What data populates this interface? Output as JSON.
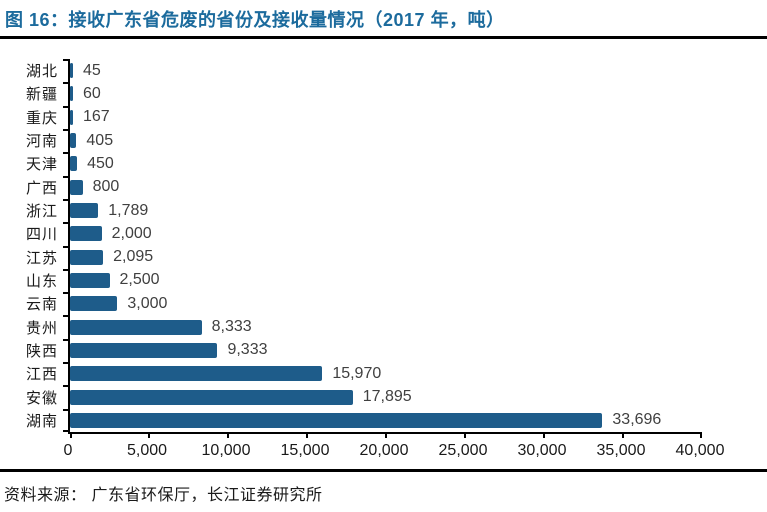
{
  "figure": {
    "title": "图 16：接收广东省危废的省份及接收量情况（2017 年，吨）",
    "source": "资料来源： 广东省环保厅，长江证券研究所",
    "title_color": "#1C6B9D"
  },
  "chart_data": {
    "type": "bar",
    "orientation": "horizontal",
    "title": "接收广东省危废的省份及接收量情况（2017 年，吨）",
    "categories": [
      "湖北",
      "新疆",
      "重庆",
      "河南",
      "天津",
      "广西",
      "浙江",
      "四川",
      "江苏",
      "山东",
      "云南",
      "贵州",
      "陕西",
      "江西",
      "安徽",
      "湖南"
    ],
    "values": [
      45,
      60,
      167,
      405,
      450,
      800,
      1789,
      2000,
      2095,
      2500,
      3000,
      8333,
      9333,
      15970,
      17895,
      33696
    ],
    "value_labels": [
      "45",
      "60",
      "167",
      "405",
      "450",
      "800",
      "1,789",
      "2,000",
      "2,095",
      "2,500",
      "3,000",
      "8,333",
      "9,333",
      "15,970",
      "17,895",
      "33,696"
    ],
    "xlabel": "",
    "ylabel": "",
    "xlim": [
      0,
      40000
    ],
    "x_ticks": [
      0,
      5000,
      10000,
      15000,
      20000,
      25000,
      30000,
      35000,
      40000
    ],
    "x_tick_labels": [
      "0",
      "5,000",
      "10,000",
      "15,000",
      "20,000",
      "25,000",
      "30,000",
      "35,000",
      "40,000"
    ],
    "bar_color": "#1E5C8A",
    "axis_color": "#000000",
    "grid": false,
    "legend": false
  }
}
